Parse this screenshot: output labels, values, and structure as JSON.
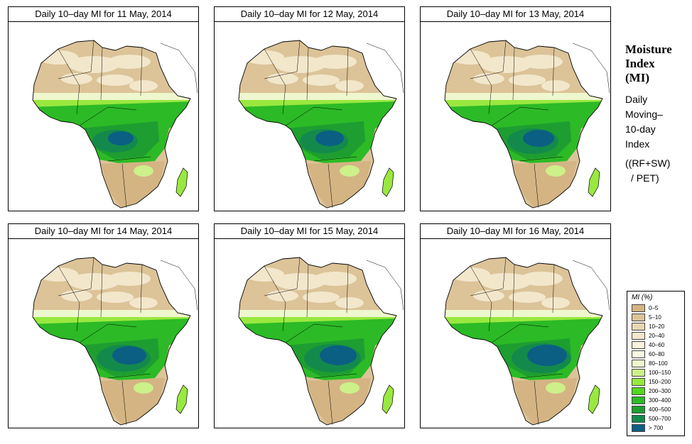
{
  "panels": [
    {
      "title": "Daily 10–day MI for  11 May, 2014"
    },
    {
      "title": "Daily 10–day MI for  12 May, 2014"
    },
    {
      "title": "Daily 10–day MI for  13 May, 2014"
    },
    {
      "title": "Daily 10–day MI for  14 May, 2014"
    },
    {
      "title": "Daily 10–day MI for  15 May, 2014"
    },
    {
      "title": "Daily 10–day MI for  16 May, 2014"
    }
  ],
  "side": {
    "title_line1": "Moisture",
    "title_line2": "Index",
    "title_line3": "(MI)",
    "desc_line1": "Daily",
    "desc_line2": "Moving–",
    "desc_line3": "10-day",
    "desc_line4": "Index",
    "formula_line1": "((RF+SW)",
    "formula_line2": "/ PET)"
  },
  "legend": {
    "title": "MI (%)",
    "items": [
      {
        "label": "0–5",
        "color": "#d4b483"
      },
      {
        "label": "5–10",
        "color": "#dcc398"
      },
      {
        "label": "10–20",
        "color": "#e8d7b4"
      },
      {
        "label": "20–40",
        "color": "#f2e7cb"
      },
      {
        "label": "40–60",
        "color": "#f8f2de"
      },
      {
        "label": "60–80",
        "color": "#fbf9e6"
      },
      {
        "label": "80–100",
        "color": "#eef7cd"
      },
      {
        "label": "100–150",
        "color": "#cdf08a"
      },
      {
        "label": "150–200",
        "color": "#99e840"
      },
      {
        "label": "200–300",
        "color": "#52d81e"
      },
      {
        "label": "300–400",
        "color": "#2cba26"
      },
      {
        "label": "400–500",
        "color": "#1e9e30"
      },
      {
        "label": "500–700",
        "color": "#138a4c"
      },
      {
        "label": "> 700",
        "color": "#0b5f82"
      }
    ]
  }
}
